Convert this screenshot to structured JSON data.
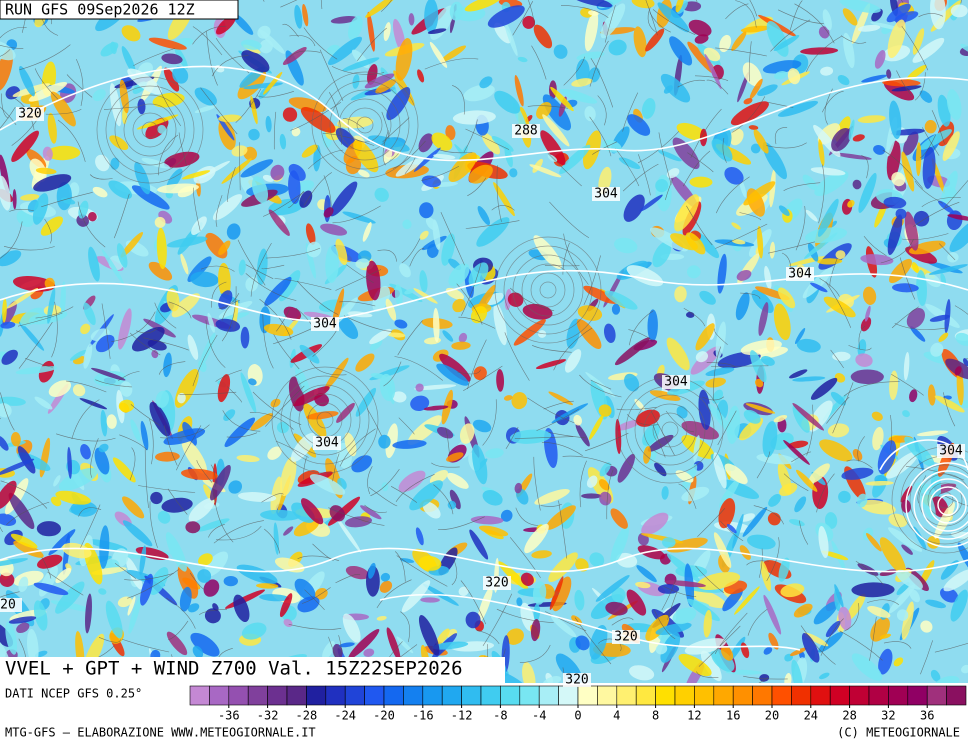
{
  "header": {
    "run": "RUN GFS 09Sep2026 12Z"
  },
  "map": {
    "title": "VVEL + GPT + WIND Z700 Val. 15Z22SEP2026",
    "contour_labels": [
      320,
      288,
      304,
      304,
      304,
      304,
      304,
      304,
      20,
      320,
      320,
      320
    ]
  },
  "colorbar": {
    "range": [
      -40,
      40
    ],
    "ticks": [
      -36,
      -32,
      -28,
      -24,
      -20,
      -16,
      -12,
      -8,
      -4,
      0,
      4,
      8,
      12,
      16,
      20,
      24,
      28,
      32,
      36
    ],
    "colors": [
      "#c488d4",
      "#a868c4",
      "#9450b0",
      "#80409c",
      "#6c3090",
      "#5a2888",
      "#2020a0",
      "#2030c0",
      "#2044d8",
      "#2058f0",
      "#1468f0",
      "#1480f0",
      "#1898f0",
      "#20a8f0",
      "#30bcf0",
      "#40ccf0",
      "#58dcf0",
      "#78e6f2",
      "#a8eef6",
      "#d4f8f8",
      "#ffffc4",
      "#fff8a0",
      "#fff070",
      "#ffe840",
      "#ffe000",
      "#ffd000",
      "#ffc000",
      "#ffa800",
      "#ff9000",
      "#ff7800",
      "#ff5000",
      "#f03000",
      "#e01010",
      "#d00024",
      "#c00034",
      "#b00044",
      "#a00054",
      "#900064",
      "#a0307c",
      "#8a1060"
    ]
  },
  "footer": {
    "source": "DATI NCEP GFS 0.25°",
    "credit": "MTG-GFS – ELABORAZIONE WWW.METEOGIORNALE.IT",
    "copyright": "(C) METEOGIORNALE"
  }
}
